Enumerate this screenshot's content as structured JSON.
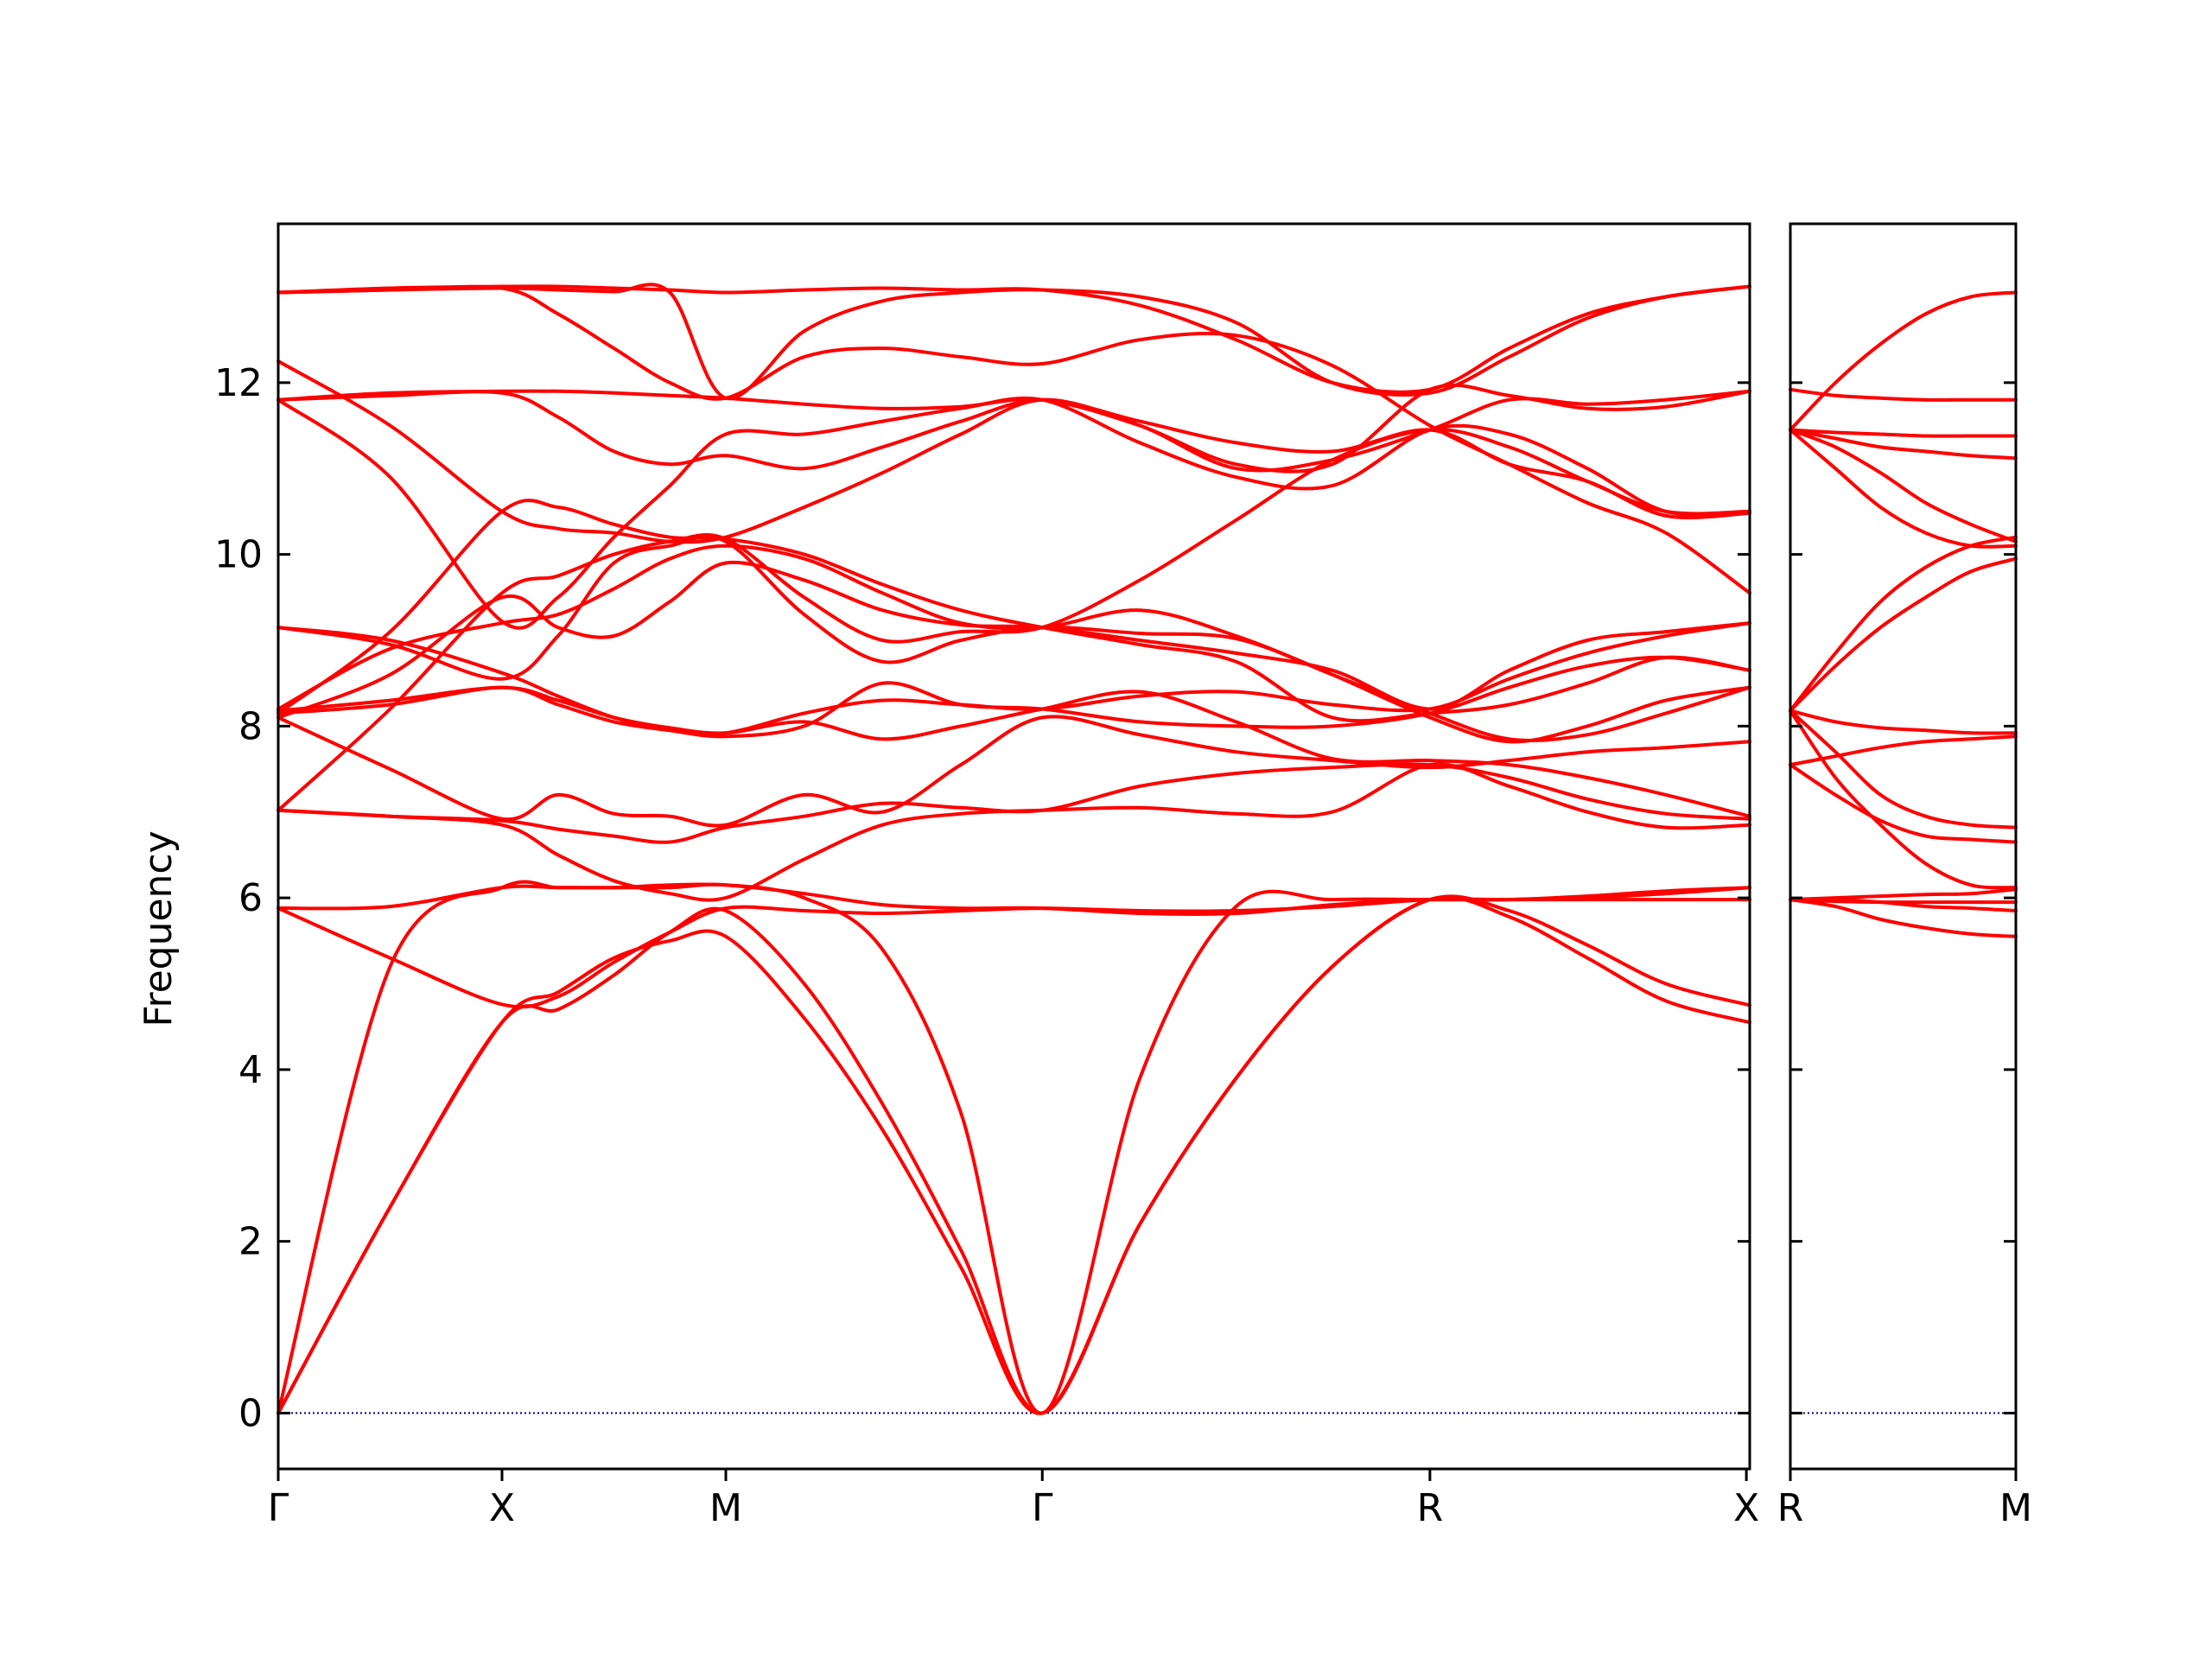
{
  "chart_data": {
    "type": "line",
    "title": "",
    "ylabel": "Frequency",
    "ylim": [
      -0.65,
      13.85
    ],
    "yticks": [
      0,
      2,
      4,
      6,
      8,
      10,
      12
    ],
    "line_color": "#ff0000",
    "zero_line_color": "#00008b",
    "grid": false,
    "legend": "none",
    "panels": [
      {
        "name": "left",
        "xlim": [
          0,
          6.575
        ],
        "xticks": [
          {
            "x": 0,
            "label": "Γ"
          },
          {
            "x": 1,
            "label": "X"
          },
          {
            "x": 2,
            "label": "M"
          },
          {
            "x": 3.414,
            "label": "Γ"
          },
          {
            "x": 5.146,
            "label": "R"
          },
          {
            "x": 6.56,
            "label": "X"
          }
        ],
        "x": [
          0,
          0.5,
          1,
          1.25,
          1.5,
          1.75,
          2,
          2.35,
          2.7,
          3.05,
          3.414,
          3.85,
          4.28,
          4.71,
          5.146,
          5.5,
          5.85,
          6.2,
          6.575
        ],
        "series": [
          {
            "values": [
              0,
              2.4,
              4.55,
              4.9,
              5.3,
              5.5,
              5.55,
              4.6,
              3.3,
              1.7,
              0,
              2.2,
              3.9,
              5.2,
              5.98,
              5.78,
              5.3,
              4.8,
              4.55
            ]
          },
          {
            "values": [
              0,
              2.4,
              4.55,
              4.7,
              5.1,
              5.6,
              5.85,
              5.0,
              3.6,
              1.9,
              0,
              2.2,
              3.9,
              5.2,
              5.98,
              5.85,
              5.45,
              5.0,
              4.75
            ]
          },
          {
            "values": [
              0,
              5.2,
              6.12,
              6.12,
              6.12,
              6.12,
              6.15,
              6.0,
              5.4,
              3.5,
              0,
              3.9,
              5.9,
              5.98,
              5.98,
              5.98,
              6.02,
              6.08,
              6.12
            ]
          },
          {
            "values": [
              5.88,
              5.3,
              4.76,
              4.85,
              5.25,
              5.6,
              5.88,
              5.85,
              5.82,
              5.85,
              5.88,
              5.85,
              5.85,
              5.9,
              5.98,
              5.98,
              6.0,
              6.05,
              6.12
            ]
          },
          {
            "values": [
              5.88,
              5.9,
              6.12,
              6.12,
              6.12,
              6.15,
              6.15,
              6.05,
              5.92,
              5.88,
              5.88,
              5.82,
              5.82,
              5.92,
              5.98,
              5.98,
              5.98,
              5.98,
              5.98
            ]
          },
          {
            "values": [
              7.02,
              6.95,
              6.85,
              6.5,
              6.2,
              6.05,
              6.0,
              6.45,
              6.85,
              6.98,
              7.02,
              7.05,
              6.98,
              7.0,
              7.55,
              7.3,
              7.0,
              6.82,
              6.85
            ]
          },
          {
            "values": [
              7.02,
              6.95,
              6.9,
              6.8,
              6.72,
              6.65,
              6.82,
              6.95,
              7.1,
              7.05,
              7.02,
              7.3,
              7.45,
              7.52,
              7.55,
              7.4,
              7.15,
              6.98,
              6.92
            ]
          },
          {
            "values": [
              8.1,
              7.5,
              6.92,
              7.2,
              6.98,
              6.95,
              6.85,
              7.2,
              7.0,
              7.55,
              8.1,
              7.9,
              7.7,
              7.6,
              7.52,
              7.6,
              7.7,
              7.75,
              7.82
            ]
          },
          {
            "values": [
              8.18,
              8.3,
              8.45,
              8.3,
              8.1,
              7.98,
              7.92,
              8.05,
              7.85,
              8.0,
              8.2,
              8.4,
              8.05,
              7.62,
              7.6,
              7.55,
              7.4,
              7.2,
              6.95
            ]
          },
          {
            "values": [
              8.15,
              8.25,
              8.45,
              8.25,
              8.05,
              7.95,
              7.88,
              8.0,
              8.5,
              8.25,
              8.2,
              8.05,
              8.0,
              8.0,
              8.15,
              8.45,
              8.7,
              8.8,
              8.65
            ]
          },
          {
            "values": [
              9.15,
              9.0,
              8.62,
              8.35,
              8.1,
              7.95,
              7.92,
              8.15,
              8.3,
              8.25,
              8.2,
              8.35,
              8.4,
              8.25,
              8.2,
              8.55,
              8.85,
              9.05,
              9.2
            ]
          },
          {
            "values": [
              9.15,
              8.95,
              8.55,
              9.05,
              9.9,
              10.1,
              10.15,
              9.3,
              8.75,
              9.0,
              9.15,
              9.08,
              9.02,
              8.6,
              8.15,
              7.85,
              7.9,
              8.15,
              8.45
            ]
          },
          {
            "values": [
              8.1,
              8.6,
              9.5,
              9.15,
              9.05,
              9.45,
              9.9,
              9.7,
              9.35,
              9.18,
              9.15,
              9.0,
              8.85,
              8.65,
              8.2,
              8.65,
              9.0,
              9.1,
              9.2
            ]
          },
          {
            "values": [
              8.2,
              8.9,
              9.2,
              9.3,
              9.6,
              9.95,
              10.1,
              9.95,
              9.55,
              9.2,
              9.15,
              9.35,
              9.05,
              8.6,
              8.1,
              7.82,
              8.0,
              8.3,
              8.45
            ]
          },
          {
            "values": [
              7.02,
              8.2,
              9.55,
              9.75,
              10.0,
              10.15,
              10.18,
              9.5,
              9.0,
              9.1,
              9.15,
              9.7,
              10.4,
              11.1,
              11.45,
              11.25,
              10.85,
              10.5,
              10.5
            ]
          },
          {
            "values": [
              8.15,
              9.1,
              10.5,
              10.55,
              10.35,
              10.2,
              10.18,
              10.0,
              9.65,
              9.35,
              9.15,
              8.95,
              8.75,
              8.1,
              8.15,
              8.25,
              8.5,
              8.8,
              8.65
            ]
          },
          {
            "values": [
              12.25,
              11.5,
              10.5,
              10.3,
              10.25,
              10.15,
              10.2,
              10.55,
              10.95,
              11.4,
              11.8,
              11.5,
              11.0,
              11.1,
              11.45,
              11.8,
              11.75,
              11.8,
              11.9
            ]
          },
          {
            "values": [
              11.8,
              11.85,
              11.88,
              11.6,
              11.2,
              11.05,
              11.15,
              11.0,
              11.25,
              11.55,
              11.8,
              11.55,
              11.3,
              11.2,
              11.45,
              11.05,
              10.85,
              10.45,
              10.48
            ]
          },
          {
            "values": [
              11.8,
              10.9,
              9.22,
              9.5,
              10.2,
              10.8,
              11.4,
              11.4,
              11.55,
              11.7,
              11.8,
              11.3,
              10.9,
              10.8,
              11.45,
              11.4,
              11.0,
              10.5,
              10.5
            ]
          },
          {
            "values": [
              11.8,
              11.88,
              11.9,
              11.9,
              11.88,
              11.85,
              11.82,
              11.75,
              11.7,
              11.72,
              11.8,
              11.5,
              11.05,
              11.05,
              11.92,
              11.85,
              11.7,
              11.72,
              11.9
            ]
          },
          {
            "values": [
              13.05,
              13.08,
              13.1,
              12.8,
              12.4,
              12.0,
              11.82,
              12.3,
              12.4,
              12.3,
              12.22,
              12.5,
              12.55,
              12.2,
              11.5,
              11.05,
              10.6,
              10.25,
              9.55
            ]
          },
          {
            "values": [
              13.05,
              13.08,
              13.1,
              13.08,
              13.06,
              13.05,
              11.82,
              12.6,
              12.95,
              13.05,
              13.08,
              13.0,
              12.7,
              12.0,
              11.88,
              12.3,
              12.75,
              13.0,
              13.12
            ]
          },
          {
            "values": [
              13.05,
              13.1,
              13.12,
              13.12,
              13.1,
              13.08,
              13.05,
              13.08,
              13.1,
              13.08,
              13.08,
              12.9,
              12.5,
              12.0,
              11.92,
              12.4,
              12.8,
              13.0,
              13.12
            ]
          }
        ]
      },
      {
        "name": "right",
        "xlim": [
          0,
          1.0
        ],
        "xticks": [
          {
            "x": 0,
            "label": "R"
          },
          {
            "x": 1.0,
            "label": "M"
          }
        ],
        "x": [
          0,
          0.2,
          0.4,
          0.6,
          0.8,
          1.0
        ],
        "series": [
          {
            "values": [
              5.98,
              5.9,
              5.75,
              5.65,
              5.58,
              5.55
            ]
          },
          {
            "values": [
              5.98,
              5.98,
              5.95,
              5.9,
              5.88,
              5.85
            ]
          },
          {
            "values": [
              5.98,
              6.0,
              6.02,
              6.04,
              6.05,
              6.1
            ]
          },
          {
            "values": [
              5.98,
              5.96,
              5.95,
              5.95,
              5.95,
              5.95
            ]
          },
          {
            "values": [
              7.55,
              7.2,
              6.9,
              6.72,
              6.68,
              6.65
            ]
          },
          {
            "values": [
              7.55,
              7.65,
              7.75,
              7.82,
              7.85,
              7.88
            ]
          },
          {
            "values": [
              8.18,
              7.4,
              6.85,
              6.4,
              6.15,
              6.12
            ]
          },
          {
            "values": [
              8.18,
              7.7,
              7.2,
              6.95,
              6.85,
              6.82
            ]
          },
          {
            "values": [
              8.18,
              8.05,
              7.98,
              7.95,
              7.92,
              7.92
            ]
          },
          {
            "values": [
              8.18,
              8.7,
              9.15,
              9.5,
              9.8,
              9.95
            ]
          },
          {
            "values": [
              8.18,
              8.85,
              9.45,
              9.85,
              10.1,
              10.2
            ]
          },
          {
            "values": [
              11.45,
              11.0,
              10.55,
              10.25,
              10.1,
              10.1
            ]
          },
          {
            "values": [
              11.45,
              11.25,
              10.95,
              10.6,
              10.35,
              10.15
            ]
          },
          {
            "values": [
              11.45,
              11.42,
              11.4,
              11.38,
              11.38,
              11.38
            ]
          },
          {
            "values": [
              11.45,
              11.35,
              11.25,
              11.2,
              11.15,
              11.12
            ]
          },
          {
            "values": [
              11.45,
              12.0,
              12.45,
              12.8,
              13.0,
              13.05
            ]
          },
          {
            "values": [
              11.92,
              11.85,
              11.82,
              11.8,
              11.8,
              11.8
            ]
          }
        ]
      }
    ]
  }
}
